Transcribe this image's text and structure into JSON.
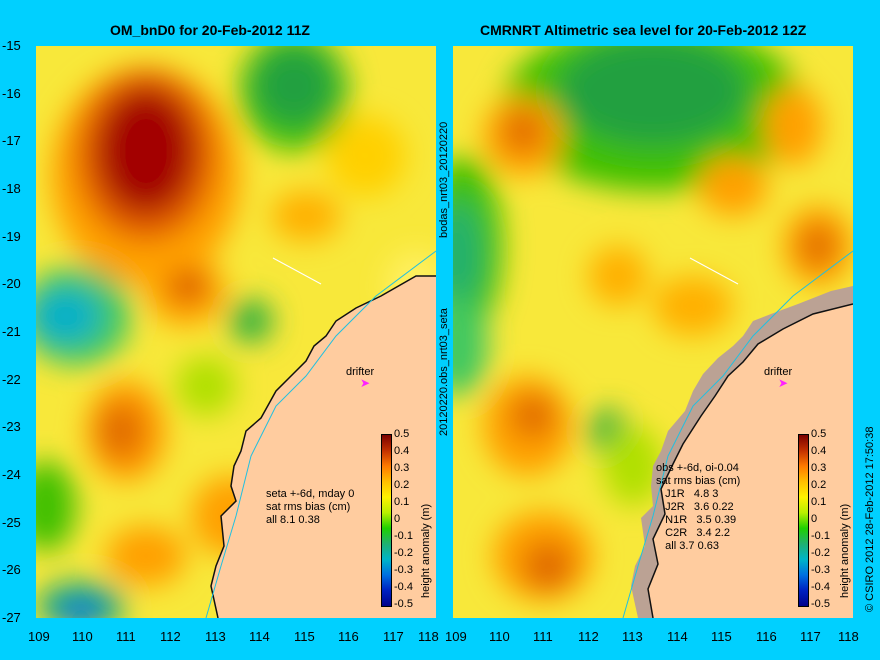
{
  "panels": {
    "left": {
      "title": "OM_bnD0 for 20-Feb-2012 11Z",
      "stats": "seta +-6d, mday 0\nsat rms bias (cm)\nall 8.1 0.38",
      "drifter_label": "drifter"
    },
    "right": {
      "title": "CMRNRT Altimetric sea level  for 20-Feb-2012 12Z",
      "stats": "obs +-6d, oi-0.04\nsat rms bias (cm)\n   J1R   4.8 3\n   J2R   3.6 0.22\n   N1R   3.5 0.39\n   C2R   3.4 2.2\n   all 3.7 0.63",
      "drifter_label": "drifter"
    }
  },
  "side_labels": {
    "middle_top": "bodas_nrt03_20120220",
    "middle_bottom": "20120220.obs_nrt03_seta",
    "right_credit": "© CSIRO 2012  28-Feb-2012 17:50:38"
  },
  "axes": {
    "lat_ticks": [
      "-15",
      "-16",
      "-17",
      "-18",
      "-19",
      "-20",
      "-21",
      "-22",
      "-23",
      "-24",
      "-25",
      "-26",
      "-27"
    ],
    "lon_ticks": [
      "109",
      "110",
      "111",
      "112",
      "113",
      "114",
      "115",
      "116",
      "117",
      "118"
    ],
    "lat_range": [
      -27,
      -15
    ],
    "lon_range": [
      109,
      118
    ]
  },
  "colorbar": {
    "label": "height anomaly (m)",
    "ticks": [
      "0.5",
      "0.4",
      "0.3",
      "0.2",
      "0.1",
      "0",
      "-0.1",
      "-0.2",
      "-0.3",
      "-0.4",
      "-0.5"
    ],
    "range": [
      -0.5,
      0.5
    ]
  },
  "colors": {
    "background": "#00d0ff",
    "land": "#ffcc9f",
    "coast_line": "#00c0e0",
    "drifter_marker": "#ff20ff"
  }
}
